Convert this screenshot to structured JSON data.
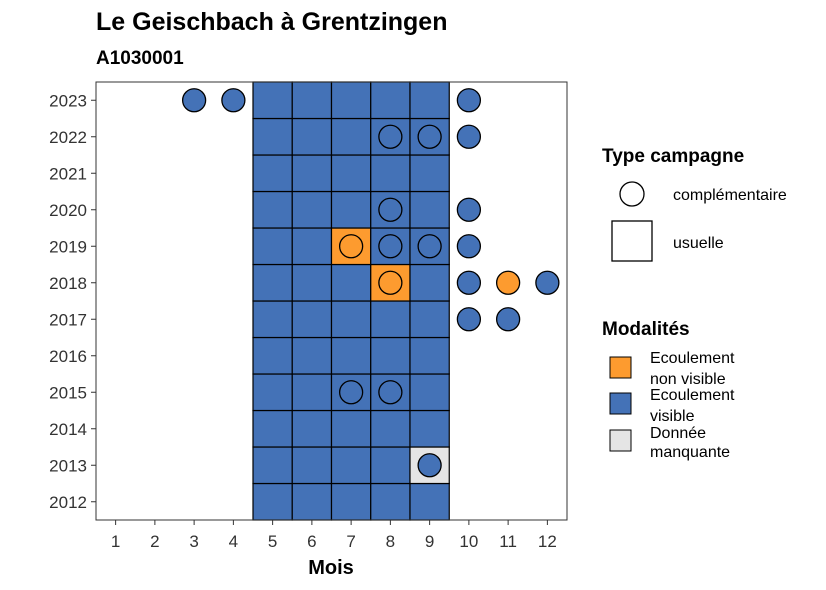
{
  "chart_data": {
    "type": "heatmap",
    "title": "Le Geischbach à Grentzingen",
    "subtitle": "A1030001",
    "xlabel": "Mois",
    "ylabel": "",
    "x_ticks": [
      1,
      2,
      3,
      4,
      5,
      6,
      7,
      8,
      9,
      10,
      11,
      12
    ],
    "y_ticks": [
      2012,
      2013,
      2014,
      2015,
      2016,
      2017,
      2018,
      2019,
      2020,
      2021,
      2022,
      2023
    ],
    "xlim": [
      0.5,
      12.5
    ],
    "ylim": [
      2011.5,
      2023.5
    ],
    "grid": false,
    "colors": {
      "ecoulement_non_visible": "#fd9b2f",
      "ecoulement_visible": "#4472b7",
      "donnee_manquante": "#e5e5e5"
    },
    "legend": {
      "placement": "right",
      "type_title": "Type campagne",
      "type_entries": [
        {
          "label": "complémentaire",
          "shape": "circle"
        },
        {
          "label": "usuelle",
          "shape": "square"
        }
      ],
      "modalites_title": "Modalités",
      "modalites_entries": [
        {
          "label_lines": [
            "Ecoulement",
            "non visible"
          ],
          "color_key": "ecoulement_non_visible"
        },
        {
          "label_lines": [
            "Ecoulement",
            "visible"
          ],
          "color_key": "ecoulement_visible"
        },
        {
          "label_lines": [
            "Donnée",
            "manquante"
          ],
          "color_key": "donnee_manquante"
        }
      ]
    },
    "usuelle": [
      {
        "year": 2012,
        "months": {
          "5": "ecoulement_visible",
          "6": "ecoulement_visible",
          "7": "ecoulement_visible",
          "8": "ecoulement_visible",
          "9": "ecoulement_visible"
        }
      },
      {
        "year": 2013,
        "months": {
          "5": "ecoulement_visible",
          "6": "ecoulement_visible",
          "7": "ecoulement_visible",
          "8": "ecoulement_visible",
          "9": "donnee_manquante"
        }
      },
      {
        "year": 2014,
        "months": {
          "5": "ecoulement_visible",
          "6": "ecoulement_visible",
          "7": "ecoulement_visible",
          "8": "ecoulement_visible",
          "9": "ecoulement_visible"
        }
      },
      {
        "year": 2015,
        "months": {
          "5": "ecoulement_visible",
          "6": "ecoulement_visible",
          "7": "ecoulement_visible",
          "8": "ecoulement_visible",
          "9": "ecoulement_visible"
        }
      },
      {
        "year": 2016,
        "months": {
          "5": "ecoulement_visible",
          "6": "ecoulement_visible",
          "7": "ecoulement_visible",
          "8": "ecoulement_visible",
          "9": "ecoulement_visible"
        }
      },
      {
        "year": 2017,
        "months": {
          "5": "ecoulement_visible",
          "6": "ecoulement_visible",
          "7": "ecoulement_visible",
          "8": "ecoulement_visible",
          "9": "ecoulement_visible"
        }
      },
      {
        "year": 2018,
        "months": {
          "5": "ecoulement_visible",
          "6": "ecoulement_visible",
          "7": "ecoulement_visible",
          "8": "ecoulement_non_visible",
          "9": "ecoulement_visible"
        }
      },
      {
        "year": 2019,
        "months": {
          "5": "ecoulement_visible",
          "6": "ecoulement_visible",
          "7": "ecoulement_non_visible",
          "8": "ecoulement_visible",
          "9": "ecoulement_visible"
        }
      },
      {
        "year": 2020,
        "months": {
          "5": "ecoulement_visible",
          "6": "ecoulement_visible",
          "7": "ecoulement_visible",
          "8": "ecoulement_visible",
          "9": "ecoulement_visible"
        }
      },
      {
        "year": 2021,
        "months": {
          "5": "ecoulement_visible",
          "6": "ecoulement_visible",
          "7": "ecoulement_visible",
          "8": "ecoulement_visible",
          "9": "ecoulement_visible"
        }
      },
      {
        "year": 2022,
        "months": {
          "5": "ecoulement_visible",
          "6": "ecoulement_visible",
          "7": "ecoulement_visible",
          "8": "ecoulement_visible",
          "9": "ecoulement_visible"
        }
      },
      {
        "year": 2023,
        "months": {
          "5": "ecoulement_visible",
          "6": "ecoulement_visible",
          "7": "ecoulement_visible",
          "8": "ecoulement_visible",
          "9": "ecoulement_visible"
        }
      }
    ],
    "complementaire": [
      {
        "year": 2013,
        "month": 9,
        "modalite": "ecoulement_visible"
      },
      {
        "year": 2015,
        "month": 7,
        "modalite": "ecoulement_visible"
      },
      {
        "year": 2015,
        "month": 8,
        "modalite": "ecoulement_visible"
      },
      {
        "year": 2017,
        "month": 10,
        "modalite": "ecoulement_visible"
      },
      {
        "year": 2017,
        "month": 11,
        "modalite": "ecoulement_visible"
      },
      {
        "year": 2018,
        "month": 8,
        "modalite": "ecoulement_non_visible"
      },
      {
        "year": 2018,
        "month": 10,
        "modalite": "ecoulement_visible"
      },
      {
        "year": 2018,
        "month": 11,
        "modalite": "ecoulement_non_visible"
      },
      {
        "year": 2018,
        "month": 12,
        "modalite": "ecoulement_visible"
      },
      {
        "year": 2019,
        "month": 7,
        "modalite": "ecoulement_non_visible"
      },
      {
        "year": 2019,
        "month": 8,
        "modalite": "ecoulement_visible"
      },
      {
        "year": 2019,
        "month": 9,
        "modalite": "ecoulement_visible"
      },
      {
        "year": 2019,
        "month": 10,
        "modalite": "ecoulement_visible"
      },
      {
        "year": 2020,
        "month": 8,
        "modalite": "ecoulement_visible"
      },
      {
        "year": 2020,
        "month": 10,
        "modalite": "ecoulement_visible"
      },
      {
        "year": 2022,
        "month": 8,
        "modalite": "ecoulement_visible"
      },
      {
        "year": 2022,
        "month": 9,
        "modalite": "ecoulement_visible"
      },
      {
        "year": 2022,
        "month": 10,
        "modalite": "ecoulement_visible"
      },
      {
        "year": 2023,
        "month": 3,
        "modalite": "ecoulement_visible"
      },
      {
        "year": 2023,
        "month": 4,
        "modalite": "ecoulement_visible"
      },
      {
        "year": 2023,
        "month": 10,
        "modalite": "ecoulement_visible"
      }
    ]
  }
}
